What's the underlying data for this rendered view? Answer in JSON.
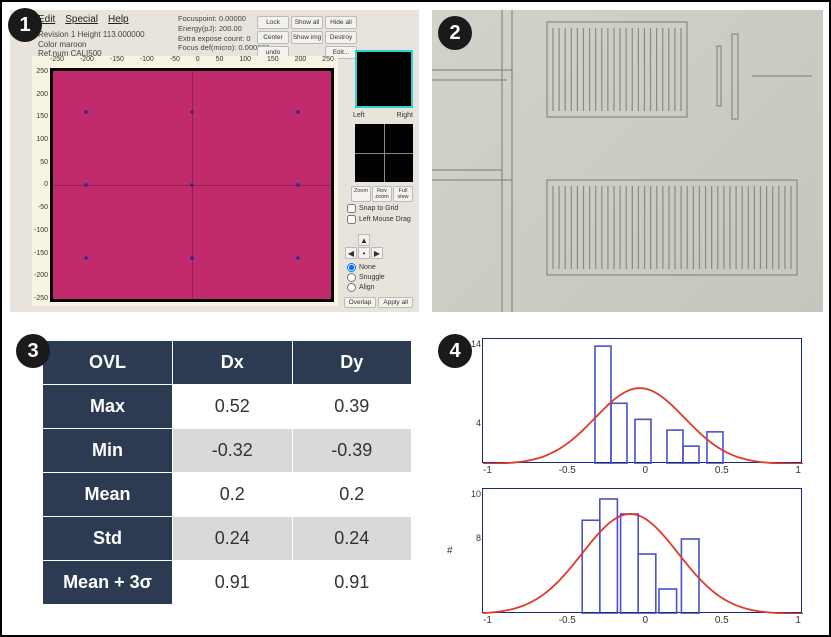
{
  "badges": {
    "p1": "1",
    "p2": "2",
    "p3": "3",
    "p4": "4"
  },
  "panel1": {
    "menu": [
      "Edit",
      "Special",
      "Help"
    ],
    "meta_left": {
      "line1": "Revision   1   Height  113.000000",
      "line2": "Color   maroon",
      "line3": "Ref.num  CALI500"
    },
    "meta_right": {
      "l1": "Focuspoint:  0.00000",
      "l2": "Energy(pJ):  200.00",
      "l3": "Extra expose count: 0",
      "l4": "Focus def(micro): 0.000000"
    },
    "buttons_top": [
      "Lock",
      "Show all",
      "Hide all",
      "Center",
      "Show img",
      "Destroy",
      "undo",
      " ",
      "Edit..."
    ],
    "x_ticks": [
      "-250",
      "-200",
      "-150",
      "-100",
      "-50",
      "0",
      "50",
      "100",
      "150",
      "200",
      "250"
    ],
    "y_ticks": [
      "250",
      "200",
      "150",
      "100",
      "50",
      "0",
      "-50",
      "-100",
      "-150",
      "-200",
      "-250"
    ],
    "dots": [
      [
        12,
        18
      ],
      [
        50,
        18
      ],
      [
        88,
        18
      ],
      [
        12,
        50
      ],
      [
        50,
        50
      ],
      [
        88,
        50
      ],
      [
        12,
        82
      ],
      [
        50,
        82
      ],
      [
        88,
        82
      ]
    ],
    "lr": [
      "Left",
      "Right"
    ],
    "thumb_btns": [
      "Zoom",
      "Rev zoom",
      "Full view"
    ],
    "checks": [
      "Snap to Grid",
      "Left Mouse Drag"
    ],
    "radios": [
      "None",
      "Snuggle",
      "Align"
    ],
    "bottom_btns": [
      "Overlap",
      "Apply all"
    ]
  },
  "panel3": {
    "headers": [
      "OVL",
      "Dx",
      "Dy"
    ],
    "rows": [
      {
        "label": "Max",
        "dx": "0.52",
        "dy": "0.39"
      },
      {
        "label": "Min",
        "dx": "-0.32",
        "dy": "-0.39"
      },
      {
        "label": "Mean",
        "dx": "0.2",
        "dy": "0.2"
      },
      {
        "label": "Std",
        "dx": "0.24",
        "dy": "0.24"
      },
      {
        "label": "Mean + 3σ",
        "dx": "0.91",
        "dy": "0.91"
      }
    ],
    "header_bg": "#2c3a52",
    "row_alt_bg": "#d9d9d9"
  },
  "panel4": {
    "chart1": {
      "type": "histogram",
      "xlim": [
        -1,
        1
      ],
      "ylim": [
        0,
        14
      ],
      "x_ticks": [
        "-1",
        "-0.5",
        "0",
        "0.5",
        "1"
      ],
      "y_ticks": [
        "14",
        "",
        "4",
        ""
      ],
      "bar_color": "#4a52c8",
      "bar_fill": "none",
      "curve_color": "#e03a2a",
      "bars": [
        {
          "x": -0.3,
          "w": 0.1,
          "h": 13.2
        },
        {
          "x": -0.2,
          "w": 0.1,
          "h": 6.8
        },
        {
          "x": -0.05,
          "w": 0.1,
          "h": 5.0
        },
        {
          "x": 0.15,
          "w": 0.1,
          "h": 3.8
        },
        {
          "x": 0.25,
          "w": 0.1,
          "h": 2.0
        },
        {
          "x": 0.4,
          "w": 0.1,
          "h": 3.6
        }
      ],
      "curve_mu": -0.02,
      "curve_sigma": 0.28,
      "curve_peak": 8.5
    },
    "chart2": {
      "type": "histogram",
      "xlim": [
        -1,
        1
      ],
      "ylim": [
        0,
        10
      ],
      "x_ticks": [
        "-1",
        "-0.5",
        "0",
        "0.5",
        "1"
      ],
      "y_ticks": [
        "10",
        "8",
        "",
        ""
      ],
      "ylabel": "#",
      "bar_color": "#4a52c8",
      "bar_fill": "none",
      "curve_color": "#e03a2a",
      "bars": [
        {
          "x": -0.38,
          "w": 0.11,
          "h": 7.5
        },
        {
          "x": -0.27,
          "w": 0.11,
          "h": 9.2
        },
        {
          "x": -0.14,
          "w": 0.11,
          "h": 8.0
        },
        {
          "x": -0.03,
          "w": 0.11,
          "h": 4.8
        },
        {
          "x": 0.1,
          "w": 0.11,
          "h": 2.0
        },
        {
          "x": 0.24,
          "w": 0.11,
          "h": 6.0
        }
      ],
      "curve_mu": -0.08,
      "curve_sigma": 0.3,
      "curve_peak": 8.0
    }
  }
}
